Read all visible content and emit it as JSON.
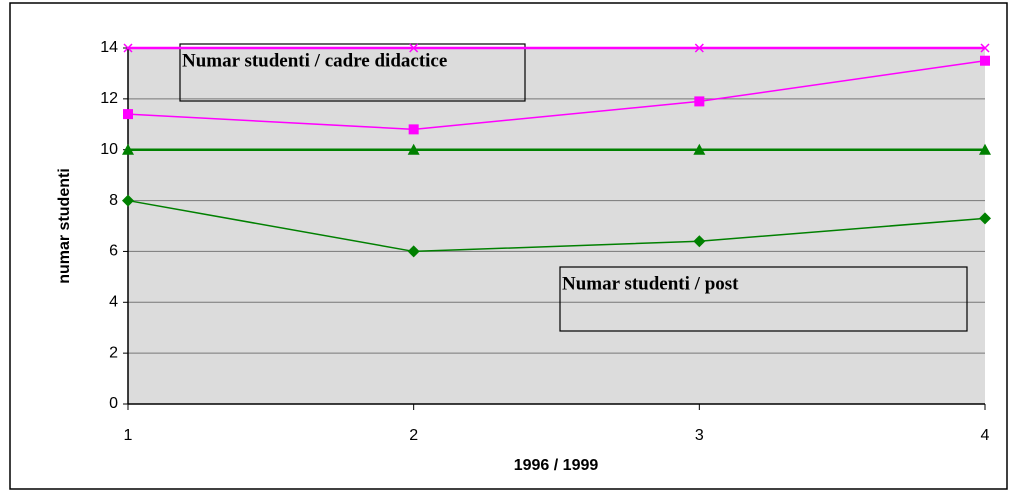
{
  "chart_data": {
    "type": "line",
    "x_label": "1996 / 1999",
    "y_label": "numar studenti",
    "annotations": [
      "Numar studenti / cadre didactice",
      "Numar studenti / post"
    ],
    "x": [
      1,
      2,
      3,
      4
    ],
    "xlim": [
      1,
      4
    ],
    "xticks": [
      1,
      2,
      3,
      4
    ],
    "ylim": [
      0,
      14
    ],
    "yticks": [
      0,
      2,
      4,
      6,
      8,
      10,
      12,
      14
    ],
    "grid": true,
    "series": [
      {
        "color": "#ff00ff",
        "marker": "x",
        "values": [
          14,
          14,
          14,
          14
        ]
      },
      {
        "color": "#ff00ff",
        "marker": "square",
        "values": [
          11.4,
          10.8,
          11.9,
          13.5
        ]
      },
      {
        "color": "#008000",
        "marker": "triangle",
        "values": [
          10,
          10,
          10,
          10
        ]
      },
      {
        "color": "#008000",
        "marker": "diamond",
        "values": [
          8,
          6,
          6.4,
          7.3
        ]
      }
    ]
  }
}
